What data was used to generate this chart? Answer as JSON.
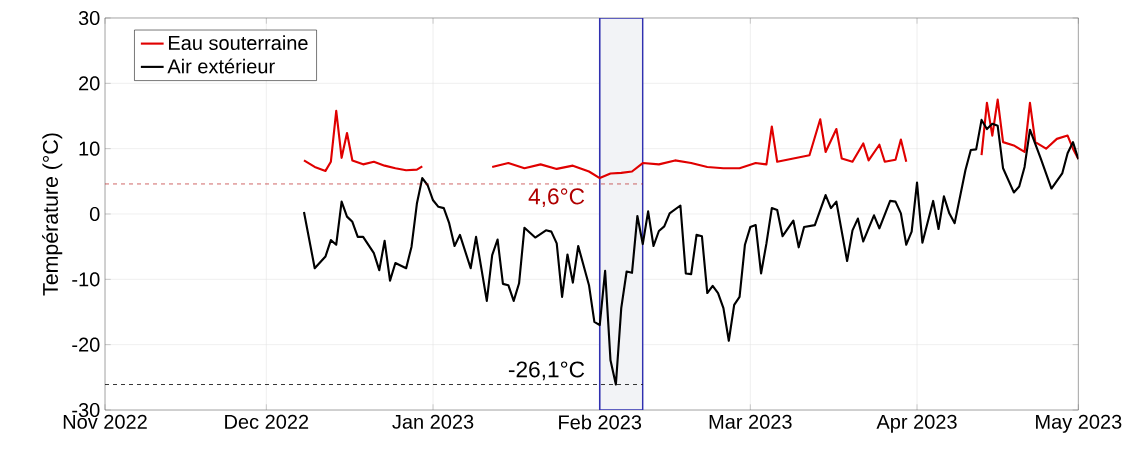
{
  "chart_data": {
    "type": "line",
    "ylabel": "Température (°C)",
    "xlim": [
      "2022-11-01",
      "2023-05-01"
    ],
    "xticks": [
      {
        "value": "2022-11-01",
        "label": "Nov 2022"
      },
      {
        "value": "2022-12-01",
        "label": "Dec 2022"
      },
      {
        "value": "2023-01-01",
        "label": "Jan 2023"
      },
      {
        "value": "2023-02-01",
        "label": "Feb 2023"
      },
      {
        "value": "2023-03-01",
        "label": "Mar 2023"
      },
      {
        "value": "2023-04-01",
        "label": "Apr 2023"
      },
      {
        "value": "2023-05-01",
        "label": "May 2023"
      }
    ],
    "ylim": [
      -30,
      30
    ],
    "yticks": [
      -30,
      -20,
      -10,
      0,
      10,
      20,
      30
    ],
    "grid": true,
    "legend": "top left",
    "series": [
      {
        "name": "Eau souterraine",
        "color": "#e00000",
        "x": [
          "2022-12-08",
          "2022-12-10",
          "2022-12-12",
          "2022-12-13",
          "2022-12-14",
          "2022-12-15",
          "2022-12-16",
          "2022-12-17",
          "2022-12-19",
          "2022-12-21",
          "2022-12-23",
          "2022-12-25",
          "2022-12-27",
          "2022-12-29",
          "2022-12-30",
          "2022-12-31",
          "2023-01-12",
          "2023-01-15",
          "2023-01-18",
          "2023-01-21",
          "2023-01-24",
          "2023-01-27",
          "2023-01-30",
          "2023-02-01",
          "2023-02-03",
          "2023-02-05",
          "2023-02-07",
          "2023-02-09",
          "2023-02-12",
          "2023-02-15",
          "2023-02-18",
          "2023-02-21",
          "2023-02-24",
          "2023-02-27",
          "2023-03-02",
          "2023-03-04",
          "2023-03-05",
          "2023-03-06",
          "2023-03-09",
          "2023-03-12",
          "2023-03-14",
          "2023-03-15",
          "2023-03-17",
          "2023-03-18",
          "2023-03-20",
          "2023-03-22",
          "2023-03-23",
          "2023-03-25",
          "2023-03-26",
          "2023-03-28",
          "2023-03-29",
          "2023-03-30",
          "2023-03-31",
          "2023-04-13",
          "2023-04-14",
          "2023-04-15",
          "2023-04-16",
          "2023-04-17",
          "2023-04-19",
          "2023-04-21",
          "2023-04-22",
          "2023-04-23",
          "2023-04-25",
          "2023-04-27",
          "2023-04-29",
          "2023-04-30",
          "2023-05-01"
        ],
        "values": [
          8.2,
          7.2,
          6.6,
          8.0,
          15.8,
          8.6,
          12.4,
          8.2,
          7.6,
          8.0,
          7.4,
          7.0,
          6.7,
          6.8,
          7.3,
          null,
          7.2,
          7.8,
          7.0,
          7.6,
          6.9,
          7.4,
          6.5,
          5.5,
          6.2,
          6.3,
          6.5,
          7.8,
          7.6,
          8.2,
          7.8,
          7.2,
          7.0,
          7.0,
          7.8,
          7.6,
          13.4,
          8.0,
          8.5,
          9.0,
          14.5,
          9.5,
          13.0,
          8.5,
          8.0,
          10.8,
          8.2,
          10.6,
          8.0,
          8.3,
          11.4,
          8.0,
          null,
          9.0,
          17.0,
          12.0,
          17.5,
          11.0,
          10.5,
          9.5,
          17.0,
          11.0,
          10.0,
          11.5,
          12.0,
          10.0,
          8.4
        ]
      },
      {
        "name": "Air extérieur",
        "color": "#000000",
        "x": [
          "2022-12-08",
          "2022-12-10",
          "2022-12-12",
          "2022-12-13",
          "2022-12-14",
          "2022-12-15",
          "2022-12-16",
          "2022-12-17",
          "2022-12-18",
          "2022-12-19",
          "2022-12-21",
          "2022-12-22",
          "2022-12-23",
          "2022-12-24",
          "2022-12-25",
          "2022-12-27",
          "2022-12-28",
          "2022-12-29",
          "2022-12-30",
          "2022-12-31",
          "2023-01-01",
          "2023-01-02",
          "2023-01-03",
          "2023-01-04",
          "2023-01-05",
          "2023-01-06",
          "2023-01-08",
          "2023-01-09",
          "2023-01-11",
          "2023-01-12",
          "2023-01-13",
          "2023-01-14",
          "2023-01-15",
          "2023-01-16",
          "2023-01-17",
          "2023-01-18",
          "2023-01-20",
          "2023-01-22",
          "2023-01-23",
          "2023-01-24",
          "2023-01-25",
          "2023-01-26",
          "2023-01-27",
          "2023-01-28",
          "2023-01-30",
          "2023-01-31",
          "2023-02-01",
          "2023-02-02",
          "2023-02-03",
          "2023-02-04",
          "2023-02-05",
          "2023-02-06",
          "2023-02-07",
          "2023-02-08",
          "2023-02-09",
          "2023-02-10",
          "2023-02-11",
          "2023-02-12",
          "2023-02-13",
          "2023-02-14",
          "2023-02-16",
          "2023-02-17",
          "2023-02-18",
          "2023-02-19",
          "2023-02-20",
          "2023-02-21",
          "2023-02-22",
          "2023-02-23",
          "2023-02-24",
          "2023-02-25",
          "2023-02-26",
          "2023-02-27",
          "2023-02-28",
          "2023-03-01",
          "2023-03-02",
          "2023-03-03",
          "2023-03-04",
          "2023-03-05",
          "2023-03-06",
          "2023-03-07",
          "2023-03-09",
          "2023-03-10",
          "2023-03-11",
          "2023-03-13",
          "2023-03-15",
          "2023-03-16",
          "2023-03-17",
          "2023-03-19",
          "2023-03-20",
          "2023-03-21",
          "2023-03-22",
          "2023-03-24",
          "2023-03-25",
          "2023-03-27",
          "2023-03-28",
          "2023-03-29",
          "2023-03-30",
          "2023-03-31",
          "2023-04-01",
          "2023-04-02",
          "2023-04-04",
          "2023-04-05",
          "2023-04-06",
          "2023-04-07",
          "2023-04-08",
          "2023-04-10",
          "2023-04-11",
          "2023-04-12",
          "2023-04-13",
          "2023-04-14",
          "2023-04-15",
          "2023-04-16",
          "2023-04-17",
          "2023-04-19",
          "2023-04-20",
          "2023-04-21",
          "2023-04-22",
          "2023-04-24",
          "2023-04-26",
          "2023-04-28",
          "2023-04-29",
          "2023-04-30",
          "2023-05-01"
        ],
        "values": [
          0.3,
          -8.3,
          -6.5,
          -4.0,
          -4.7,
          1.9,
          -0.4,
          -1.2,
          -3.5,
          -3.5,
          -6.0,
          -8.6,
          -4.1,
          -10.2,
          -7.5,
          -8.3,
          -5.0,
          1.6,
          5.5,
          4.4,
          2.1,
          1.1,
          0.9,
          -1.4,
          -4.9,
          -3.2,
          -8.3,
          -3.5,
          -13.3,
          -6.3,
          -3.9,
          -10.7,
          -10.9,
          -13.3,
          -10.6,
          -2.1,
          -3.6,
          -2.5,
          -2.7,
          -4.5,
          -12.7,
          -6.2,
          -10.5,
          -4.9,
          -10.9,
          -16.5,
          -17.0,
          -8.7,
          -22.4,
          -26.1,
          -14.4,
          -8.8,
          -9.0,
          -0.3,
          -4.6,
          0.4,
          -4.9,
          -2.6,
          -1.9,
          0.1,
          1.3,
          -9.1,
          -9.2,
          -3.2,
          -3.4,
          -12.1,
          -11.0,
          -12.1,
          -14.4,
          -19.4,
          -13.9,
          -12.7,
          -4.7,
          -2.0,
          -1.7,
          -9.1,
          -4.5,
          0.9,
          0.6,
          -3.4,
          -1.0,
          -5.1,
          -2.0,
          -1.7,
          2.9,
          0.9,
          1.9,
          -7.2,
          -2.5,
          -0.7,
          -4.2,
          -0.2,
          -2.2,
          2.0,
          1.9,
          0.1,
          -4.7,
          -2.7,
          4.8,
          -4.4,
          2.0,
          -2.3,
          2.7,
          0.1,
          -1.4,
          6.7,
          9.8,
          9.9,
          14.4,
          13.0,
          13.8,
          13.5,
          7.0,
          3.3,
          4.2,
          7.2,
          12.9,
          8.5,
          3.9,
          6.2,
          9.3,
          11.0,
          8.4
        ]
      }
    ],
    "ref_lines": [
      {
        "axis": "y",
        "value": 4.6,
        "label": "4,6°C",
        "color": "#b00000",
        "line_style": "dashed"
      },
      {
        "axis": "y",
        "value": -26.1,
        "label": "-26,1°C",
        "color": "#000000",
        "line_style": "dashed"
      }
    ],
    "bands": [
      {
        "axis": "x",
        "from": "2023-02-01",
        "to": "2023-02-09",
        "color": "#f2f3f6"
      }
    ]
  }
}
